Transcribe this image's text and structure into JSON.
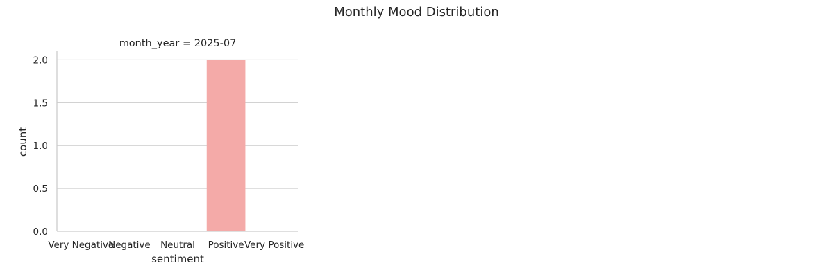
{
  "chart_data": {
    "type": "bar",
    "title": "Monthly Mood Distribution",
    "facet_title": "month_year = 2025-07",
    "xlabel": "sentiment",
    "ylabel": "count",
    "categories": [
      "Very Negative",
      "Negative",
      "Neutral",
      "Positive",
      "Very Positive"
    ],
    "values": [
      0,
      0,
      0,
      2,
      0
    ],
    "ylim": [
      0,
      2.1
    ],
    "yticks": [
      "0.0",
      "0.5",
      "1.0",
      "1.5",
      "2.0"
    ],
    "ytick_values": [
      0,
      0.5,
      1.0,
      1.5,
      2.0
    ],
    "bar_color": "#f4aaa8",
    "grid": "horizontal",
    "legend": "none"
  }
}
